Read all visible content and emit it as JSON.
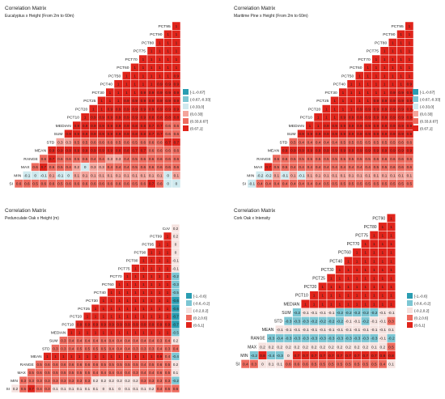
{
  "colors": {
    "bin_neg_strong": "#2a9db2",
    "bin_neg_mid": "#7cc6d3",
    "bin_neg_weak": "#cfe9ee",
    "bin_zero": "#f5e2df",
    "bin_pos_weak": "#f4a49b",
    "bin_pos_mid": "#ee6b5e",
    "bin_pos_strong": "#e0241b"
  },
  "chart_data": [
    {
      "type": "heatmap",
      "title": "Correlation Matrix",
      "subtitle": "Eucalyptus x  Height (From 2m to 60m)",
      "variables": [
        "PCT95",
        "PCT90",
        "PCT80",
        "PCT75",
        "PCT70",
        "PCT60",
        "PCT50",
        "PCT40",
        "PCT30",
        "PCT25",
        "PCT20",
        "PCT10",
        "MEDIAN",
        "SUM",
        "STD",
        "MEAN",
        "RANGE",
        "MAX",
        "MIN",
        "SI"
      ],
      "value_rows": [
        [
          1
        ],
        [
          1,
          1
        ],
        [
          1,
          1,
          1
        ],
        [
          1,
          1,
          1,
          1
        ],
        [
          1,
          1,
          1,
          1,
          1
        ],
        [
          1,
          1,
          1,
          1,
          1,
          1
        ],
        [
          1,
          1,
          1,
          1,
          1,
          1,
          0.9
        ],
        [
          1,
          1,
          1,
          1,
          1,
          0.9,
          0.9,
          0.9
        ],
        [
          1,
          1,
          1,
          1,
          0.9,
          0.9,
          0.9,
          0.9,
          0.9
        ],
        [
          1,
          1,
          1,
          0.9,
          0.9,
          0.9,
          0.9,
          0.9,
          0.9,
          0.9
        ],
        [
          1,
          1,
          0.9,
          0.9,
          0.9,
          0.9,
          0.9,
          0.9,
          0.9,
          0.9,
          0.9
        ],
        [
          1,
          0.9,
          0.9,
          0.9,
          0.9,
          0.9,
          0.9,
          0.9,
          0.8,
          0.8,
          0.8,
          0.8
        ],
        [
          0.9,
          0.9,
          0.9,
          0.9,
          0.9,
          0.9,
          0.9,
          0.8,
          0.8,
          0.7,
          0.7,
          0.6,
          0.6
        ],
        [
          0.9,
          0.9,
          0.9,
          0.9,
          0.9,
          0.9,
          0.9,
          0.9,
          0.8,
          0.8,
          0.7,
          0.7,
          0.6,
          0.6
        ],
        [
          0.3,
          0.3,
          0.5,
          0.5,
          0.6,
          0.6,
          0.6,
          0.5,
          0.6,
          0.5,
          0.6,
          0.6,
          0.6,
          0.7,
          0.7
        ],
        [
          0.9,
          0.9,
          0.9,
          0.9,
          0.9,
          0.9,
          0.9,
          0.9,
          0.8,
          0.8,
          0.7,
          0.7,
          0.6,
          0.6,
          0.6,
          0.6
        ],
        [
          0.6,
          0.7,
          0.6,
          0.6,
          0.5,
          0.5,
          0.4,
          0.4,
          0.3,
          0.3,
          0.4,
          0.5,
          0.6,
          0.6,
          0.6,
          0.6,
          0.6
        ],
        [
          0.6,
          0.7,
          0.6,
          0.5,
          0.4,
          0.2,
          0.0,
          0.3,
          0.3,
          0.4,
          0.4,
          0.4,
          0.5,
          0.6,
          0.6,
          0.6,
          0.6,
          0.6
        ],
        [
          -0.1,
          0.0,
          -0.1,
          0.1,
          -0.1,
          0.0,
          0.1,
          0.1,
          0.1,
          0.1,
          0.1,
          0.1,
          0.1,
          0.1,
          0.1,
          0.1,
          0.1,
          0.0,
          0.1
        ],
        [
          0.6,
          0.6,
          0.5,
          0.6,
          0.6,
          0.5,
          0.6,
          0.6,
          0.6,
          0.6,
          0.6,
          0.6,
          0.6,
          0.6,
          0.5,
          0.6,
          0.7,
          0.6,
          0,
          0
        ]
      ],
      "legend": {
        "labels": [
          "[-1,-0.67]",
          "(-0.67,-0.33]",
          "(-0.33,0]",
          "(0,0.33]",
          "(0.33,0.67]",
          "(0.67,1]"
        ],
        "breaks": [
          -1,
          -0.67,
          -0.33,
          0,
          0.33,
          0.67,
          1
        ],
        "position": "right"
      }
    },
    {
      "type": "heatmap",
      "title": "Correlation Matrix",
      "subtitle": "Maritime Pine x  Height (From 2m to 60m)",
      "variables": [
        "PCT95",
        "PCT90",
        "PCT80",
        "PCT75",
        "PCT70",
        "PCT60",
        "PCT50",
        "PCT40",
        "PCT30",
        "PCT25",
        "PCT20",
        "PCT10",
        "MEDIAN",
        "SUM",
        "STD",
        "MEAN",
        "RANGE",
        "MAX",
        "MIN",
        "SI"
      ],
      "value_rows": [
        [
          1
        ],
        [
          1,
          1
        ],
        [
          1,
          1,
          1
        ],
        [
          1,
          1,
          1,
          1
        ],
        [
          1,
          1,
          1,
          1,
          1
        ],
        [
          1,
          1,
          1,
          1,
          1,
          1
        ],
        [
          1,
          1,
          1,
          1,
          1,
          1,
          1
        ],
        [
          1,
          1,
          1,
          1,
          1,
          1,
          1,
          0.9
        ],
        [
          1,
          1,
          1,
          1,
          1,
          1,
          0.9,
          0.9,
          0.9
        ],
        [
          1,
          1,
          1,
          1,
          1,
          0.9,
          0.9,
          0.9,
          0.9,
          0.9
        ],
        [
          1,
          1,
          1,
          1,
          0.9,
          0.9,
          0.9,
          0.9,
          0.9,
          0.9,
          0.9
        ],
        [
          1,
          1,
          1,
          0.9,
          0.9,
          0.9,
          0.9,
          0.9,
          0.9,
          0.9,
          0.9,
          0.9
        ],
        [
          1,
          1,
          0.9,
          0.9,
          0.9,
          0.9,
          0.9,
          0.9,
          0.9,
          0.9,
          0.9,
          0.9,
          0.9
        ],
        [
          0.9,
          0.9,
          0.9,
          0.9,
          0.9,
          0.9,
          0.9,
          0.9,
          0.9,
          0.9,
          0.9,
          0.9,
          0.9,
          0.9
        ],
        [
          0.5,
          0.4,
          0.4,
          0.4,
          0.4,
          0.4,
          0.5,
          0.5,
          0.5,
          0.5,
          0.5,
          0.5,
          0.5,
          0.6,
          0.6
        ],
        [
          0.9,
          0.9,
          0.9,
          0.9,
          0.9,
          0.9,
          0.9,
          0.9,
          0.9,
          0.9,
          0.9,
          0.9,
          0.9,
          0.9,
          0.9,
          0.9
        ],
        [
          0.6,
          0.6,
          0.5,
          0.5,
          0.5,
          0.5,
          0.5,
          0.5,
          0.5,
          0.5,
          0.5,
          0.5,
          0.6,
          0.6,
          0.6,
          0.6,
          0.6
        ],
        [
          0.7,
          0.5,
          0.5,
          0.4,
          0.4,
          0.4,
          0.4,
          0.4,
          0.4,
          0.4,
          0.4,
          0.4,
          0.4,
          0.5,
          0.5,
          0.6,
          0.6,
          0.6
        ],
        [
          -0.2,
          -0.2,
          0.1,
          -0.1,
          0.1,
          -0.1,
          0.1,
          0.1,
          0.1,
          0.1,
          0.1,
          0.1,
          0.1,
          0.1,
          0.1,
          0.1,
          0.1,
          0.1,
          0.1
        ],
        [
          -0.1,
          0.4,
          0.4,
          0.4,
          0.4,
          0.4,
          0.4,
          0.4,
          0.4,
          0.5,
          0.5,
          0.5,
          0.5,
          0.5,
          0.5,
          0.5,
          0.5,
          0.5,
          0.5,
          0.5
        ]
      ],
      "legend": {
        "labels": [
          "[-1,-0.67]",
          "(-0.67,-0.33]",
          "(-0.33,0]",
          "(0,0.33]",
          "(0.33,0.67]",
          "(0.67,1]"
        ],
        "breaks": [
          -1,
          -0.67,
          -0.33,
          0,
          0.33,
          0.67,
          1
        ],
        "position": "right"
      }
    },
    {
      "type": "heatmap",
      "title": "Correlation Matrix",
      "subtitle": "Pedunculate Oak x  Height (m)",
      "variables": [
        "CoV",
        "PCT99",
        "PCT95",
        "PCT90",
        "PCT80",
        "PCT75",
        "PCT70",
        "PCT60",
        "PCT40",
        "PCT30",
        "PCT25",
        "PCT20",
        "PCT10",
        "MEDIAN",
        "SUM",
        "STD",
        "MEAN",
        "RANGE",
        "MAX",
        "MIN",
        "SI"
      ],
      "value_rows": [
        [
          0.2
        ],
        [
          1,
          0.2
        ],
        [
          1,
          1,
          0
        ],
        [
          1,
          1,
          1,
          0
        ],
        [
          1,
          1,
          1,
          1,
          -0.1
        ],
        [
          1,
          1,
          1,
          1,
          1,
          -0.1
        ],
        [
          1,
          1,
          1,
          1,
          1,
          1,
          -0.2
        ],
        [
          1,
          1,
          1,
          1,
          1,
          1,
          1,
          -0.3
        ],
        [
          1,
          1,
          1,
          1,
          1,
          1,
          1,
          1,
          -0.5
        ],
        [
          1,
          1,
          1,
          1,
          1,
          1,
          1,
          1,
          1,
          -0.6
        ],
        [
          1,
          1,
          1,
          1,
          1,
          1,
          1,
          1,
          1,
          1,
          -0.6
        ],
        [
          1,
          1,
          1,
          1,
          1,
          1,
          1,
          1,
          1,
          1,
          1,
          -0.7
        ],
        [
          0.9,
          0.9,
          0.9,
          0.9,
          0.9,
          0.9,
          0.9,
          0.9,
          0.9,
          0.9,
          0.9,
          0.9,
          -0.7
        ],
        [
          1,
          1,
          1,
          1,
          1,
          1,
          1,
          1,
          1,
          1,
          1,
          1,
          1,
          -0.5
        ],
        [
          0.3,
          0.4,
          0.4,
          0.4,
          0.4,
          0.4,
          0.4,
          0.4,
          0.4,
          0.4,
          0.4,
          0.4,
          0.3,
          0.4,
          0.2
        ],
        [
          0.3,
          0.3,
          0.4,
          0.5,
          0.5,
          0.5,
          0.5,
          0.4,
          0.4,
          0.4,
          0.3,
          0.3,
          0.3,
          0.4,
          0.3,
          0.4
        ],
        [
          1,
          1,
          1,
          1,
          1,
          1,
          1,
          1,
          1,
          1,
          1,
          1,
          1,
          1,
          0.9,
          0.4,
          -0.4
        ],
        [
          0.5,
          0.6,
          0.6,
          0.6,
          0.6,
          0.6,
          0.6,
          0.6,
          0.5,
          0.5,
          0.5,
          0.5,
          0.5,
          0.4,
          0.5,
          0.6,
          0.5,
          0.2
        ],
        [
          0.5,
          0.6,
          0.5,
          0.5,
          0.5,
          0.5,
          0.5,
          0.5,
          0.4,
          0.4,
          0.4,
          0.4,
          0.4,
          0.3,
          0.4,
          0.4,
          0.6,
          0.5,
          0.1
        ],
        [
          0.3,
          0.3,
          0.3,
          0.3,
          0.3,
          0.3,
          0.3,
          0.3,
          0.3,
          0.2,
          0.2,
          0.2,
          0.2,
          0.2,
          0.2,
          0.3,
          0.3,
          0.3,
          0.3,
          -0.2
        ],
        [
          0.2,
          0.5,
          0.7,
          0.4,
          0.3,
          0.1,
          0.1,
          0.1,
          0.1,
          0.1,
          0.1,
          0.0,
          0.1,
          0.0,
          0.1,
          0.1,
          0.1,
          0.2,
          0.4,
          0.5,
          0.6
        ]
      ],
      "legend": {
        "labels": [
          "[-1,-0.6]",
          "(-0.6,-0.2]",
          "(-0.2,0.2]",
          "(0.2,0.6]",
          "(0.6,1]"
        ],
        "breaks": [
          -1,
          -0.6,
          -0.2,
          0.2,
          0.6,
          1
        ],
        "position": "right"
      }
    },
    {
      "type": "heatmap",
      "title": "Correlation Matrix",
      "subtitle": "Cork Oak x Intensity",
      "variables": [
        "PCT90",
        "PCT80",
        "PCT75",
        "PCT70",
        "PCT60",
        "PCT40",
        "PCT30",
        "PCT25",
        "PCT20",
        "PCT10",
        "MEDIAN",
        "SUM",
        "STD",
        "MEAN",
        "RANGE",
        "MAX",
        "MIN",
        "SI"
      ],
      "value_rows": [
        [
          1
        ],
        [
          1,
          1
        ],
        [
          1,
          1,
          1
        ],
        [
          1,
          1,
          1,
          1
        ],
        [
          1,
          1,
          1,
          1,
          1
        ],
        [
          1,
          1,
          1,
          1,
          1,
          1
        ],
        [
          1,
          1,
          1,
          1,
          1,
          1,
          1
        ],
        [
          1,
          1,
          1,
          1,
          1,
          1,
          1,
          1
        ],
        [
          1,
          1,
          1,
          1,
          1,
          1,
          1,
          1,
          1
        ],
        [
          1,
          1,
          1,
          1,
          1,
          1,
          1,
          1,
          1,
          1
        ],
        [
          1,
          1,
          1,
          1,
          1,
          1,
          1,
          1,
          1,
          1,
          1
        ],
        [
          -0.2,
          -0.1,
          -0.1,
          -0.1,
          -0.1,
          -0.2,
          -0.2,
          -0.2,
          -0.2,
          -0.2,
          -0.1,
          -0.1
        ],
        [
          -0.3,
          -0.3,
          -0.3,
          -0.2,
          -0.2,
          -0.2,
          -0.2,
          -0.1,
          -0.1,
          -0.2,
          -0.1,
          -0.1,
          0.3
        ],
        [
          -0.1,
          -0.1,
          -0.1,
          -0.1,
          -0.1,
          -0.1,
          -0.1,
          -0.1,
          -0.1,
          -0.1,
          -0.1,
          -0.1,
          -0.1,
          0.1
        ],
        [
          -0.3,
          -0.4,
          -0.3,
          -0.3,
          -0.3,
          -0.3,
          -0.3,
          -0.3,
          -0.3,
          -0.3,
          -0.3,
          -0.3,
          -0.3,
          -0.1,
          -0.2
        ],
        [
          0.2,
          0.2,
          0.2,
          0.2,
          0.2,
          0.2,
          0.2,
          0.2,
          0.2,
          0.2,
          0.2,
          0.2,
          0.2,
          0.1,
          0.2,
          0.5
        ],
        [
          -0.2,
          0.8,
          -0.4,
          -0.3,
          0.0,
          0.7,
          0.7,
          0.7,
          0.7,
          0.7,
          0.7,
          0.7,
          0.7,
          0.7,
          0.7,
          0.8,
          0.8
        ],
        [
          0.4,
          0.3,
          0,
          0.1,
          0.1,
          0.6,
          0.6,
          0.6,
          0.5,
          0.5,
          0.5,
          0.5,
          0.5,
          0.5,
          0.5,
          0.5,
          0.4,
          0.1
        ]
      ],
      "legend": {
        "labels": [
          "[-1,-0.6]",
          "(-0.6,-0.2]",
          "(-0.2,0.2]",
          "(0.2,0.6]",
          "(0.6,1]"
        ],
        "breaks": [
          -1,
          -0.6,
          -0.2,
          0.2,
          0.6,
          1
        ],
        "position": "right"
      }
    }
  ]
}
